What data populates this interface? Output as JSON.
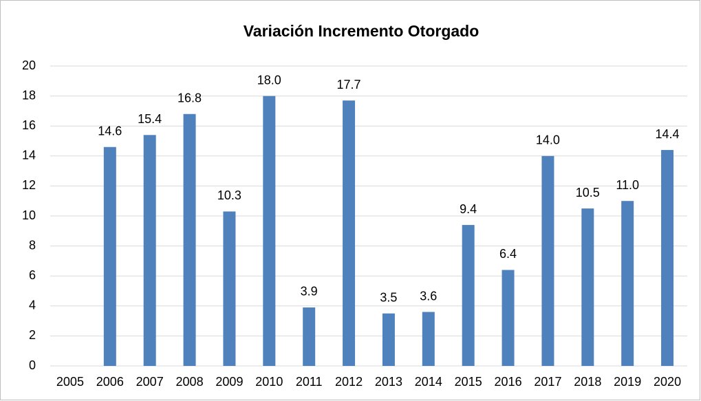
{
  "chart_data": {
    "type": "bar",
    "title": "Variación Incremento Otorgado",
    "categories": [
      "2005",
      "2006",
      "2007",
      "2008",
      "2009",
      "2010",
      "2011",
      "2012",
      "2013",
      "2014",
      "2015",
      "2016",
      "2017",
      "2018",
      "2019",
      "2020"
    ],
    "values": [
      null,
      14.6,
      15.4,
      16.8,
      10.3,
      18,
      3.9,
      17.7,
      3.5,
      3.6,
      9.4,
      6.4,
      14,
      10.5,
      11,
      14.4
    ],
    "value_labels": [
      null,
      "14.6",
      "15.4",
      "16.8",
      "10.3",
      "18.0",
      "3.9",
      "17.7",
      "3.5",
      "3.6",
      "9.4",
      "6.4",
      "14.0",
      "10.5",
      "11.0",
      "14.4"
    ],
    "color": "#4f81bd",
    "ylim": [
      0,
      20
    ],
    "yticks": [
      0,
      2,
      4,
      6,
      8,
      10,
      12,
      14,
      16,
      18,
      20
    ],
    "grid": true
  }
}
